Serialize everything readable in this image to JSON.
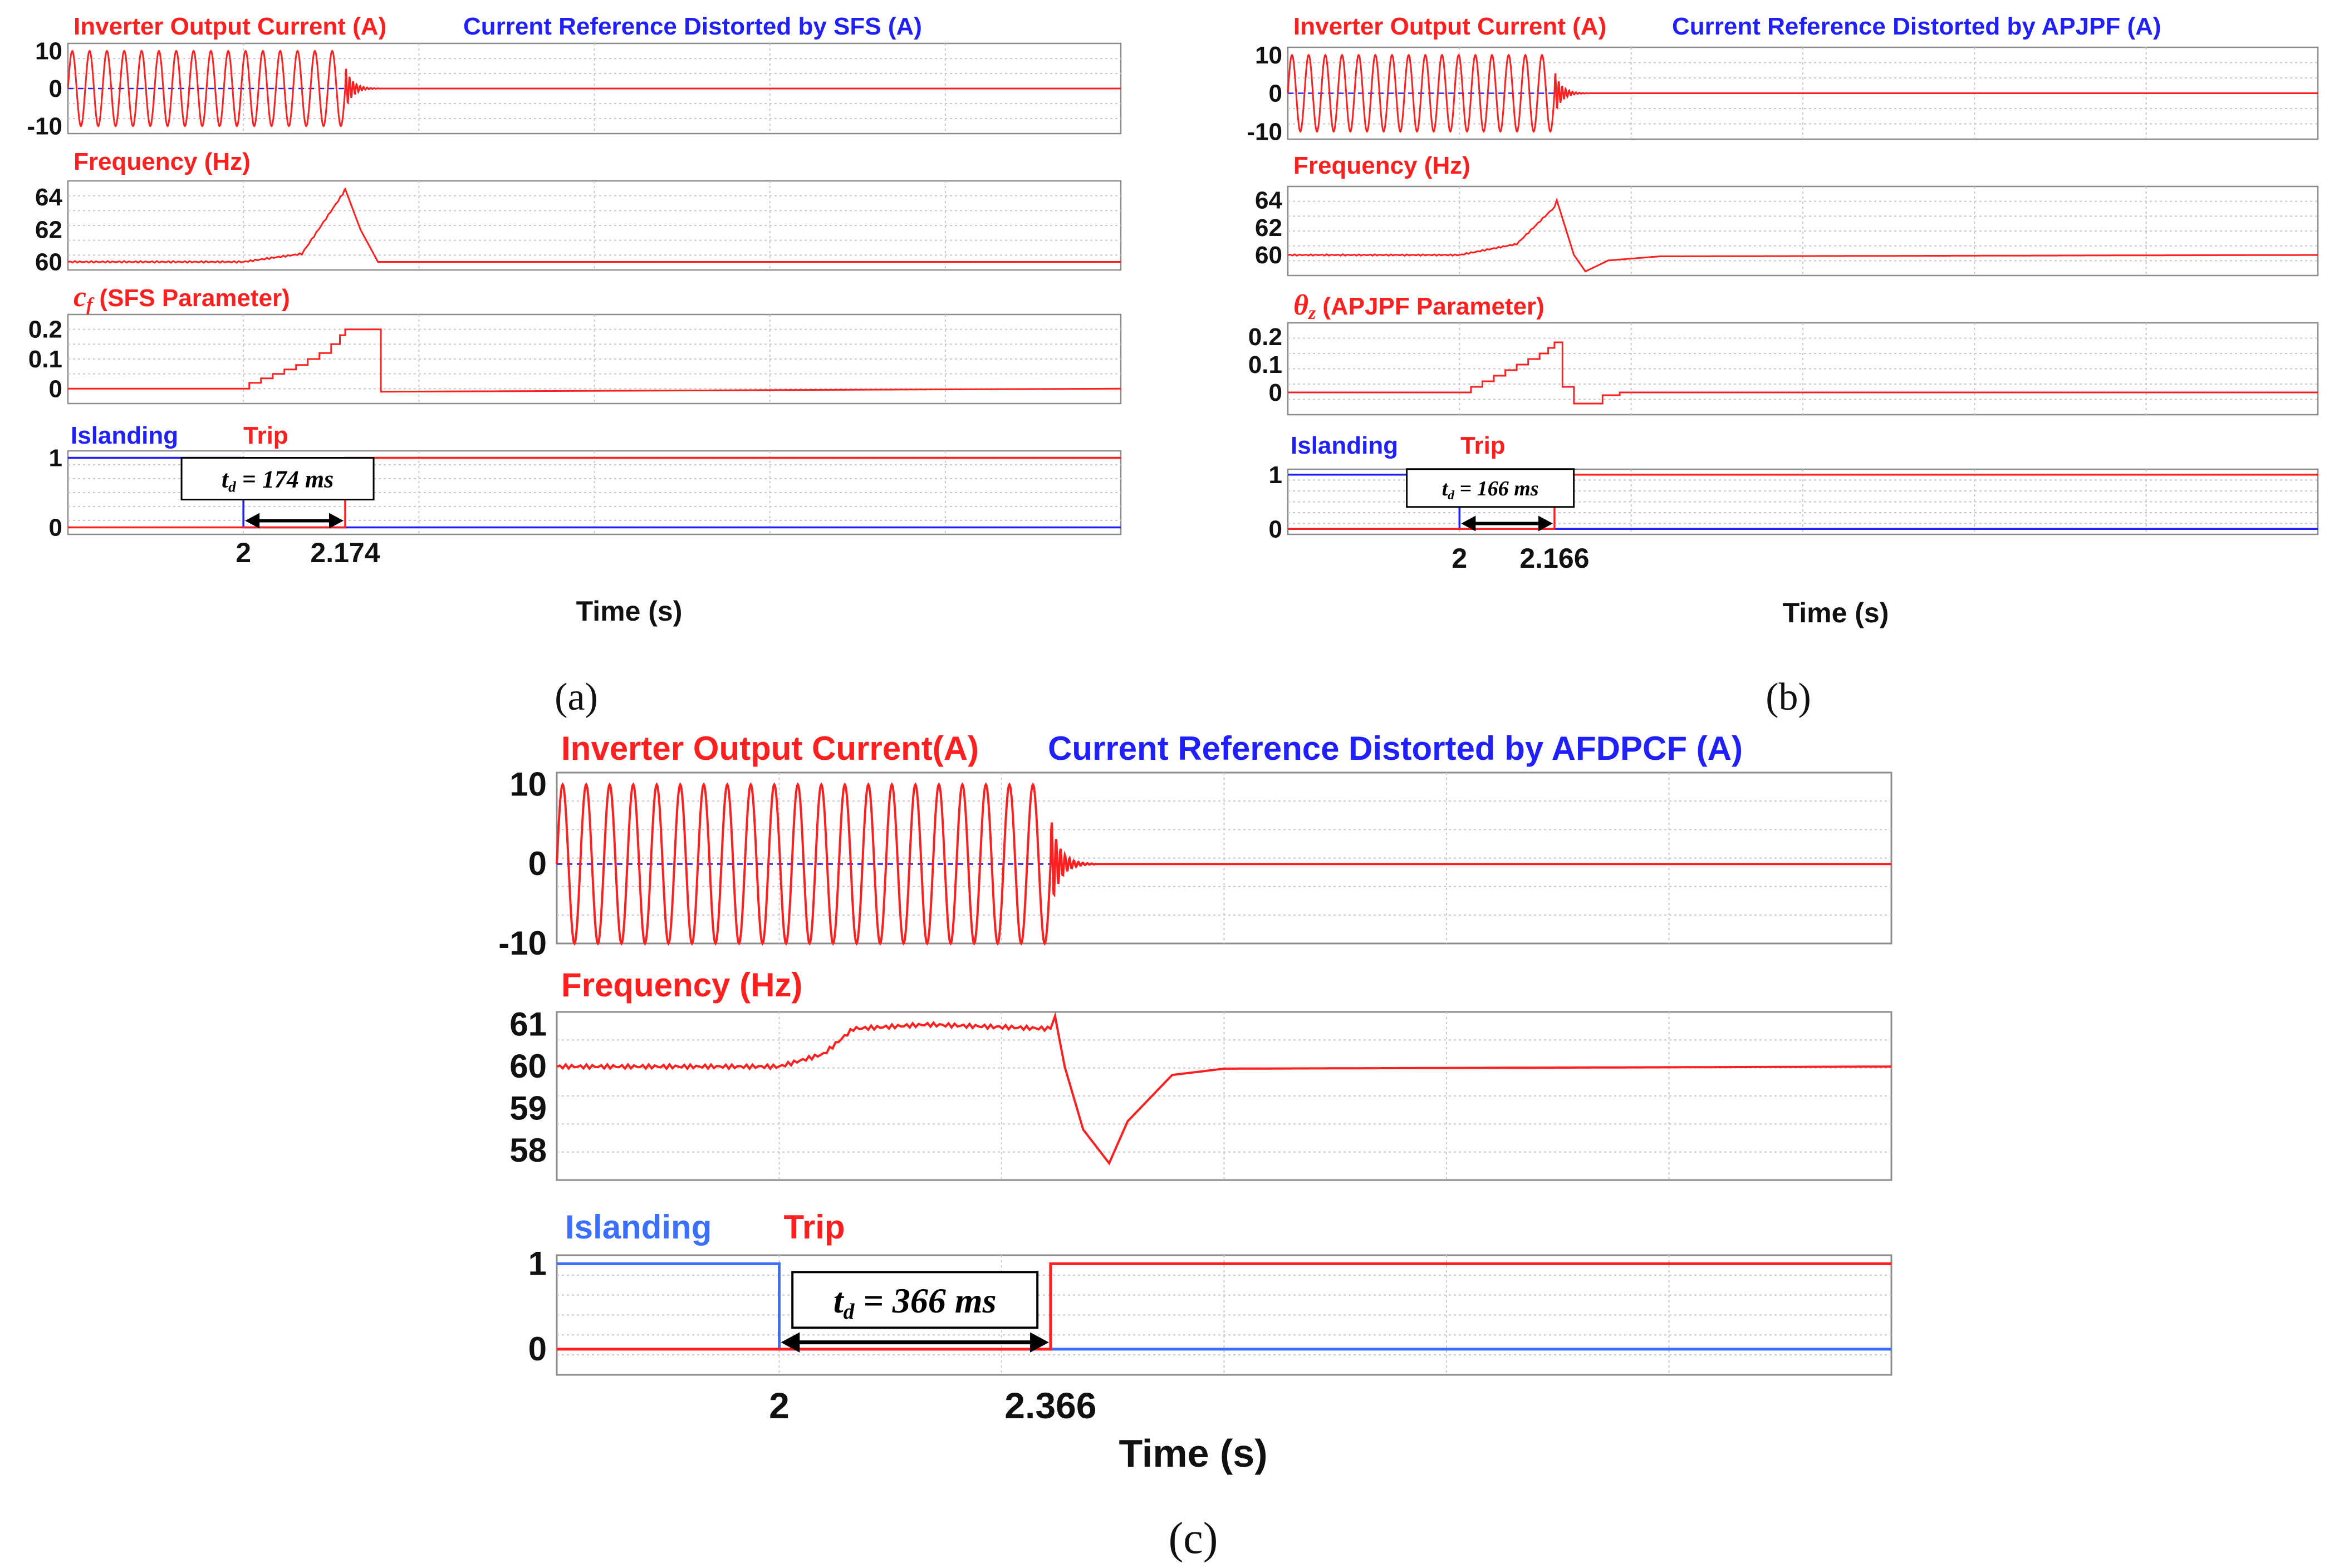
{
  "colors": {
    "red": "#ff1f1f",
    "blue": "#2020ff",
    "lightblue": "#3a6fff",
    "grid": "#c8c8c8",
    "frame": "#8c8c8c",
    "text": "#111111"
  },
  "chart_data": [
    {
      "id": "a",
      "type": "line",
      "caption": "(a)",
      "xlabel": "Time (s)",
      "x_ticks": [
        "2",
        "2.174"
      ],
      "x_range": [
        1.7,
        3.5
      ],
      "islanding_time": 2.0,
      "trip_time": 2.174,
      "panels": [
        {
          "kind": "current",
          "title": "Inverter Output Current (A)",
          "title2": "Current Reference Distorted by SFS (A)",
          "ylim": [
            -12,
            12
          ],
          "yticks": [
            "10",
            "0",
            "-10"
          ],
          "ytick_values": [
            10,
            0,
            -10
          ],
          "amplitude": 10,
          "frequency_cycles": 16
        },
        {
          "kind": "frequency",
          "title": "Frequency (Hz)",
          "ylim": [
            59.5,
            65
          ],
          "yticks": [
            "64",
            "62",
            "60"
          ],
          "ytick_values": [
            64,
            62,
            60
          ],
          "points": [
            [
              1.7,
              60
            ],
            [
              2.0,
              60
            ],
            [
              2.1,
              60.5
            ],
            [
              2.17,
              64.2
            ],
            [
              2.174,
              64.5
            ],
            [
              2.2,
              62
            ],
            [
              2.23,
              60
            ],
            [
              3.5,
              60
            ]
          ]
        },
        {
          "kind": "param",
          "title": "(SFS Parameter)",
          "title_sym": "c",
          "title_sub": "f",
          "ylim": [
            -0.05,
            0.25
          ],
          "yticks": [
            "0.2",
            "0.1",
            "0"
          ],
          "ytick_values": [
            0.2,
            0.1,
            0
          ],
          "points": [
            [
              1.7,
              0
            ],
            [
              2.0,
              0
            ],
            [
              2.01,
              0
            ],
            [
              2.01,
              0.02
            ],
            [
              2.03,
              0.02
            ],
            [
              2.03,
              0.035
            ],
            [
              2.05,
              0.035
            ],
            [
              2.05,
              0.05
            ],
            [
              2.07,
              0.05
            ],
            [
              2.07,
              0.065
            ],
            [
              2.09,
              0.065
            ],
            [
              2.09,
              0.08
            ],
            [
              2.11,
              0.08
            ],
            [
              2.11,
              0.1
            ],
            [
              2.13,
              0.1
            ],
            [
              2.13,
              0.12
            ],
            [
              2.15,
              0.12
            ],
            [
              2.15,
              0.15
            ],
            [
              2.165,
              0.15
            ],
            [
              2.165,
              0.18
            ],
            [
              2.174,
              0.18
            ],
            [
              2.174,
              0.2
            ],
            [
              2.235,
              0.2
            ],
            [
              2.235,
              -0.01
            ],
            [
              3.5,
              0
            ]
          ]
        },
        {
          "kind": "trip",
          "title": "Islanding",
          "title2": "Trip",
          "ylim": [
            -0.1,
            1.1
          ],
          "yticks": [
            "1",
            "0"
          ],
          "ytick_values": [
            1,
            0
          ],
          "td_label": "174 ms",
          "td_prefix": "t",
          "td_sub": "d"
        }
      ]
    },
    {
      "id": "b",
      "type": "line",
      "caption": "(b)",
      "xlabel": "Time (s)",
      "x_ticks": [
        "2",
        "2.166"
      ],
      "x_range": [
        1.7,
        3.5
      ],
      "islanding_time": 2.0,
      "trip_time": 2.166,
      "panels": [
        {
          "kind": "current",
          "title": "Inverter Output Current (A)",
          "title2": "Current Reference Distorted by APJPF (A)",
          "ylim": [
            -12,
            12
          ],
          "yticks": [
            "10",
            "0",
            "-10"
          ],
          "ytick_values": [
            10,
            0,
            -10
          ],
          "amplitude": 10,
          "frequency_cycles": 16
        },
        {
          "kind": "frequency",
          "title": "Frequency (Hz)",
          "ylim": [
            58.5,
            65
          ],
          "yticks": [
            "64",
            "62",
            "60"
          ],
          "ytick_values": [
            64,
            62,
            60
          ],
          "points": [
            [
              1.7,
              60
            ],
            [
              2.0,
              60
            ],
            [
              2.1,
              60.8
            ],
            [
              2.166,
              63.5
            ],
            [
              2.17,
              64
            ],
            [
              2.2,
              60
            ],
            [
              2.22,
              58.8
            ],
            [
              2.26,
              59.6
            ],
            [
              2.35,
              59.9
            ],
            [
              3.5,
              60
            ]
          ]
        },
        {
          "kind": "param",
          "title": "(APJPF Parameter)",
          "title_sym": "θ",
          "title_sub": "z",
          "ylim": [
            -0.08,
            0.25
          ],
          "yticks": [
            "0.2",
            "0.1",
            "0"
          ],
          "ytick_values": [
            0.2,
            0.1,
            0
          ],
          "points": [
            [
              1.7,
              0
            ],
            [
              2.0,
              0
            ],
            [
              2.02,
              0
            ],
            [
              2.02,
              0.02
            ],
            [
              2.04,
              0.02
            ],
            [
              2.04,
              0.04
            ],
            [
              2.06,
              0.04
            ],
            [
              2.06,
              0.06
            ],
            [
              2.08,
              0.06
            ],
            [
              2.08,
              0.08
            ],
            [
              2.1,
              0.08
            ],
            [
              2.1,
              0.1
            ],
            [
              2.12,
              0.1
            ],
            [
              2.12,
              0.12
            ],
            [
              2.14,
              0.12
            ],
            [
              2.14,
              0.14
            ],
            [
              2.155,
              0.14
            ],
            [
              2.155,
              0.16
            ],
            [
              2.166,
              0.16
            ],
            [
              2.166,
              0.18
            ],
            [
              2.18,
              0.18
            ],
            [
              2.18,
              0.02
            ],
            [
              2.2,
              0.02
            ],
            [
              2.2,
              -0.04
            ],
            [
              2.25,
              -0.04
            ],
            [
              2.25,
              -0.01
            ],
            [
              2.28,
              -0.01
            ],
            [
              2.28,
              0
            ],
            [
              3.5,
              0
            ]
          ]
        },
        {
          "kind": "trip",
          "title": "Islanding",
          "title2": "Trip",
          "ylim": [
            -0.1,
            1.1
          ],
          "yticks": [
            "1",
            "0"
          ],
          "ytick_values": [
            1,
            0
          ],
          "td_label": "166 ms",
          "td_prefix": "t",
          "td_sub": "d"
        }
      ]
    },
    {
      "id": "c",
      "type": "line",
      "caption": "(c)",
      "xlabel": "Time (s)",
      "x_ticks": [
        "2",
        "2.366"
      ],
      "x_range": [
        1.7,
        3.5
      ],
      "islanding_time": 2.0,
      "trip_time": 2.366,
      "panels": [
        {
          "kind": "current",
          "title": "Inverter Output Current(A)",
          "title2": "Current Reference Distorted by AFDPCF (A)",
          "ylim": [
            -10,
            11.5
          ],
          "yticks": [
            "10",
            "0",
            "-10"
          ],
          "ytick_values": [
            10,
            0,
            -10
          ],
          "amplitude": 10,
          "frequency_cycles": 21
        },
        {
          "kind": "frequency",
          "title": "Frequency (Hz)",
          "ylim": [
            57.3,
            61.3
          ],
          "yticks": [
            "61",
            "60",
            "59",
            "58"
          ],
          "ytick_values": [
            61,
            60,
            59,
            58
          ],
          "points": [
            [
              1.7,
              60
            ],
            [
              2.0,
              60
            ],
            [
              2.06,
              60.3
            ],
            [
              2.1,
              60.9
            ],
            [
              2.2,
              61.0
            ],
            [
              2.366,
              60.9
            ],
            [
              2.372,
              61.2
            ],
            [
              2.385,
              60.0
            ],
            [
              2.41,
              58.5
            ],
            [
              2.445,
              57.7
            ],
            [
              2.47,
              58.7
            ],
            [
              2.53,
              59.8
            ],
            [
              2.6,
              59.95
            ],
            [
              3.5,
              60
            ]
          ]
        },
        {
          "kind": "trip",
          "title": "Islanding",
          "title2": "Trip",
          "ylim": [
            -0.3,
            1.1
          ],
          "yticks": [
            "1",
            "0"
          ],
          "ytick_values": [
            1,
            0
          ],
          "td_label": "366 ms",
          "td_prefix": "t",
          "td_sub": "d"
        }
      ]
    }
  ]
}
